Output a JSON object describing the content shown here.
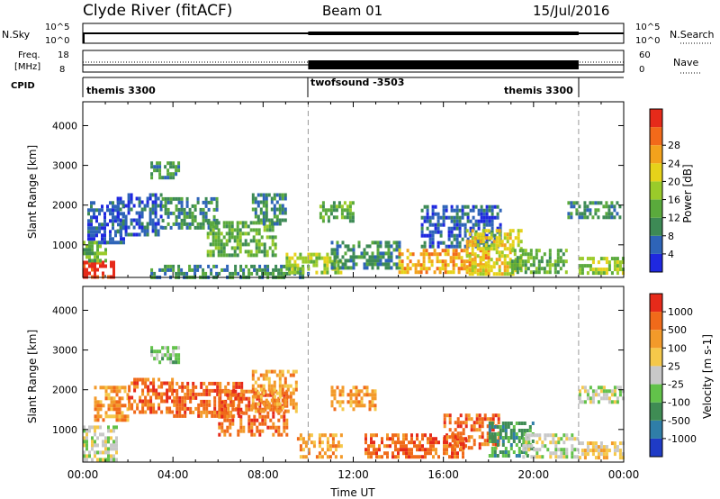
{
  "header": {
    "title": "Clyde River (fitACF)",
    "beam": "Beam 01",
    "date": "15/Jul/2016"
  },
  "top_panels": {
    "nsky_label": "N.Sky",
    "nsky_scale_top": "10^5",
    "nsky_scale_bottom": "10^0",
    "nsearch_label": "N.Search",
    "freq_label_1": "Freq.",
    "freq_label_2": "[MHz]",
    "freq_ticks": [
      "18",
      "8"
    ],
    "nave_label": "Nave",
    "nave_ticks": [
      "60",
      "0"
    ],
    "cpid_label": "CPID",
    "cpid_segments": [
      {
        "label": "themis 3300",
        "start_hour": 0,
        "end_hour": 10
      },
      {
        "label": "twofsound -3503",
        "start_hour": 10,
        "end_hour": 22
      },
      {
        "label": "themis 3300",
        "start_hour": 22,
        "end_hour": 24
      }
    ]
  },
  "chart_data": [
    {
      "type": "heatmap",
      "title": "Power",
      "ylabel": "Slant Range [km]",
      "xlabel": "",
      "xlim_hours": [
        0,
        24
      ],
      "ylim_km": [
        180,
        4600
      ],
      "yticks": [
        1000,
        2000,
        3000,
        4000
      ],
      "colorbar_label": "Power [dB]",
      "colorbar_ticks": [
        "4",
        "8",
        "12",
        "16",
        "20",
        "24",
        "28"
      ],
      "colorbar_colors": [
        "#1f28e0",
        "#2e64b8",
        "#3d8a55",
        "#5aaa3c",
        "#9acb2a",
        "#e6d21a",
        "#f3a21c",
        "#f26a1a",
        "#e62a1a"
      ],
      "regions": [
        {
          "t0": 0.0,
          "t1": 1.4,
          "r0": 200,
          "r1": 600,
          "level": 8
        },
        {
          "t0": 0.0,
          "t1": 1.0,
          "r0": 600,
          "r1": 1100,
          "level": 3
        },
        {
          "t0": 0.2,
          "t1": 1.8,
          "r0": 1100,
          "r1": 2100,
          "level": 1
        },
        {
          "t0": 1.5,
          "t1": 3.5,
          "r0": 1300,
          "r1": 2300,
          "level": 1
        },
        {
          "t0": 3.0,
          "t1": 4.2,
          "r0": 2700,
          "r1": 3100,
          "level": 2
        },
        {
          "t0": 3.5,
          "t1": 6.0,
          "r0": 1400,
          "r1": 2200,
          "level": 2
        },
        {
          "t0": 5.5,
          "t1": 8.5,
          "r0": 700,
          "r1": 1600,
          "level": 3
        },
        {
          "t0": 7.5,
          "t1": 9.0,
          "r0": 1500,
          "r1": 2300,
          "level": 2
        },
        {
          "t0": 3.0,
          "t1": 10.0,
          "r0": 200,
          "r1": 500,
          "level": 2
        },
        {
          "t0": 9.0,
          "t1": 11.5,
          "r0": 300,
          "r1": 800,
          "level": 4
        },
        {
          "t0": 10.5,
          "t1": 12.0,
          "r0": 1600,
          "r1": 2100,
          "level": 3
        },
        {
          "t0": 11.0,
          "t1": 14.0,
          "r0": 400,
          "r1": 1100,
          "level": 2
        },
        {
          "t0": 14.0,
          "t1": 18.0,
          "r0": 300,
          "r1": 900,
          "level": 6
        },
        {
          "t0": 15.0,
          "t1": 18.5,
          "r0": 1000,
          "r1": 2000,
          "level": 1
        },
        {
          "t0": 17.0,
          "t1": 19.5,
          "r0": 300,
          "r1": 1400,
          "level": 5
        },
        {
          "t0": 19.0,
          "t1": 21.5,
          "r0": 300,
          "r1": 900,
          "level": 3
        },
        {
          "t0": 21.5,
          "t1": 23.8,
          "r0": 1700,
          "r1": 2100,
          "level": 2
        },
        {
          "t0": 22.0,
          "t1": 24.0,
          "r0": 300,
          "r1": 700,
          "level": 4
        }
      ]
    },
    {
      "type": "heatmap",
      "title": "Velocity",
      "ylabel": "Slant Range [km]",
      "xlabel": "Time UT",
      "xlim_hours": [
        0,
        24
      ],
      "ylim_km": [
        180,
        4600
      ],
      "yticks": [
        1000,
        2000,
        3000,
        4000
      ],
      "xticks": [
        "00:00",
        "04:00",
        "08:00",
        "12:00",
        "16:00",
        "20:00",
        "00:00"
      ],
      "colorbar_label": "Velocity [m s-1]",
      "colorbar_ticks": [
        "1000",
        "500",
        "100",
        "25",
        "-25",
        "-100",
        "-500",
        "-1000"
      ],
      "colorbar_colors": [
        "#1f3bc6",
        "#2f7ea8",
        "#3f8c54",
        "#62c24a",
        "#c8c8c8",
        "#f5c84a",
        "#f39a2a",
        "#f06a1a",
        "#e62a1a"
      ],
      "regions": [
        {
          "t0": 0.0,
          "t1": 1.5,
          "r0": 200,
          "r1": 1100,
          "level": 4
        },
        {
          "t0": 0.5,
          "t1": 2.0,
          "r0": 1200,
          "r1": 2100,
          "level": 6
        },
        {
          "t0": 2.0,
          "t1": 4.0,
          "r0": 1400,
          "r1": 2300,
          "level": 7
        },
        {
          "t0": 3.0,
          "t1": 4.2,
          "r0": 2700,
          "r1": 3100,
          "level": 3
        },
        {
          "t0": 4.0,
          "t1": 7.0,
          "r0": 1300,
          "r1": 2200,
          "level": 7
        },
        {
          "t0": 6.0,
          "t1": 9.0,
          "r0": 900,
          "r1": 2000,
          "level": 7
        },
        {
          "t0": 7.5,
          "t1": 9.5,
          "r0": 1500,
          "r1": 2500,
          "level": 6
        },
        {
          "t0": 9.5,
          "t1": 11.5,
          "r0": 300,
          "r1": 900,
          "level": 6
        },
        {
          "t0": 11.0,
          "t1": 13.0,
          "r0": 1500,
          "r1": 2100,
          "level": 6
        },
        {
          "t0": 12.5,
          "t1": 17.0,
          "r0": 300,
          "r1": 900,
          "level": 7
        },
        {
          "t0": 16.0,
          "t1": 18.5,
          "r0": 500,
          "r1": 1400,
          "level": 7
        },
        {
          "t0": 18.0,
          "t1": 20.0,
          "r0": 300,
          "r1": 1200,
          "level": 2
        },
        {
          "t0": 19.5,
          "t1": 22.0,
          "r0": 300,
          "r1": 900,
          "level": 4
        },
        {
          "t0": 22.0,
          "t1": 24.0,
          "r0": 1700,
          "r1": 2100,
          "level": 4
        },
        {
          "t0": 22.0,
          "t1": 24.0,
          "r0": 300,
          "r1": 700,
          "level": 5
        }
      ]
    }
  ]
}
